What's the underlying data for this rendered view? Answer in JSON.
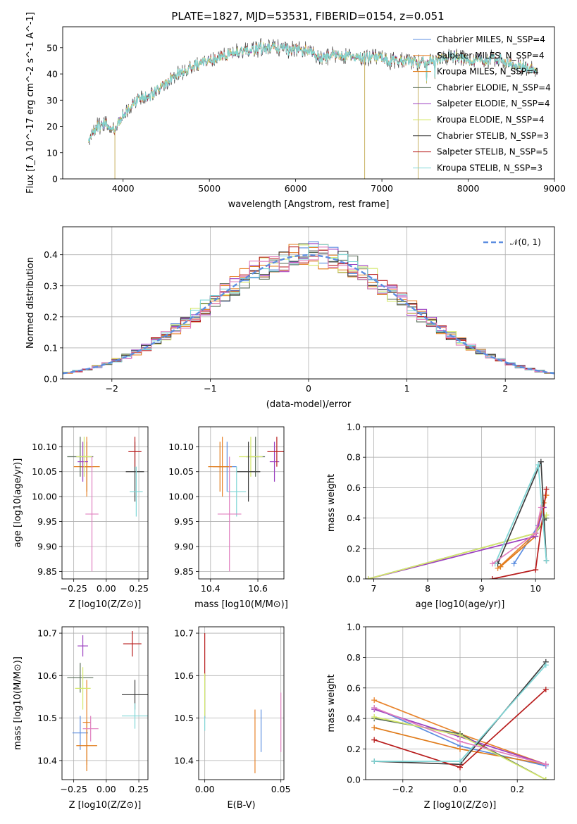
{
  "figure_title": "PLATE=1827, MJD=53531, FIBERID=0154, z=0.051",
  "colors": {
    "chabrier_miles": "#5b8de0",
    "salpeter_miles": "#e8842c",
    "kroupa_miles": "#e07b1a",
    "chabrier_elodie": "#5a6e5a",
    "salpeter_elodie": "#9b3fc0",
    "kroupa_elodie": "#d4e86a",
    "chabrier_stelib": "#3c3c3c",
    "salpeter_stelib": "#b81c1c",
    "kroupa_stelib": "#7fd6d6",
    "normal_curve": "#5b8de0",
    "pink": "#e07fbf"
  },
  "chart_data": [
    {
      "id": "spectrum",
      "type": "line",
      "xlabel": "wavelength [Angstrom, rest frame]",
      "ylabel": "Flux [f_λ 10^-17 erg cm^-2 s^-1 A^-1]",
      "xlim": [
        3300,
        9000
      ],
      "ylim": [
        0,
        58
      ],
      "xticks": [
        "4000",
        "5000",
        "6000",
        "7000",
        "8000",
        "9000"
      ],
      "yticks": [
        "0",
        "10",
        "20",
        "30",
        "40",
        "50"
      ],
      "grid": false,
      "legend_position": "top-right",
      "legend": [
        "Chabrier MILES, N_SSP=4",
        "Salpeter MILES, N_SSP=4",
        "Kroupa MILES, N_SSP=4",
        "Chabrier ELODIE, N_SSP=4",
        "Salpeter ELODIE, N_SSP=4",
        "Kroupa ELODIE, N_SSP=4",
        "Chabrier STELIB, N_SSP=3",
        "Salpeter STELIB, N_SSP=5",
        "Kroupa STELIB, N_SSP=3"
      ],
      "series_envelope": {
        "x": [
          3600,
          3700,
          3800,
          3900,
          4000,
          4100,
          4200,
          4300,
          4400,
          4500,
          4600,
          4700,
          4800,
          4900,
          5000,
          5100,
          5200,
          5300,
          5400,
          5500,
          5600,
          5700,
          5800,
          5900,
          6000,
          6100,
          6200,
          6300,
          6400,
          6500,
          6600,
          6700,
          6800,
          6900,
          7000,
          7100,
          7200,
          7300,
          7400,
          7500,
          7600,
          7700,
          7800,
          7900,
          8000,
          8100,
          8200,
          8300,
          8400,
          8500,
          8600,
          8700,
          8800
        ],
        "y": [
          15,
          20,
          21,
          19,
          24,
          28,
          31,
          31,
          35,
          37,
          40,
          41,
          43,
          44,
          45,
          46,
          47,
          48,
          49,
          49,
          50,
          50,
          50,
          49,
          50,
          49,
          48,
          46,
          47,
          47,
          47,
          46,
          46,
          47,
          46,
          45,
          45,
          45,
          44,
          45,
          45,
          46,
          47,
          46,
          45,
          45,
          45,
          46,
          45,
          44,
          43,
          42,
          41
        ]
      },
      "spikes": [
        {
          "x": 3905,
          "y": 0
        },
        {
          "x": 6800,
          "y": 0
        },
        {
          "x": 7420,
          "y": 0
        }
      ]
    },
    {
      "id": "residual_histogram",
      "type": "histogram",
      "xlabel": "(data-model)/error",
      "ylabel": "Normed distribution",
      "xlim": [
        -2.5,
        2.5
      ],
      "ylim": [
        0,
        0.49
      ],
      "xticks": [
        "−2",
        "−1",
        "0",
        "1",
        "2"
      ],
      "yticks": [
        "0.0",
        "0.1",
        "0.2",
        "0.3",
        "0.4"
      ],
      "grid": true,
      "legend_position": "top-right",
      "legend": [
        "𝒩(0, 1)"
      ],
      "bin_width": 0.1,
      "bin_start": -2.5
    },
    {
      "id": "age_vs_Z",
      "type": "scatter",
      "xlabel": "Z [log10(Z/Z⊙)]",
      "ylabel": "age  [log10(age/yr)]",
      "xlim": [
        -0.34,
        0.32
      ],
      "ylim": [
        9.835,
        10.14
      ],
      "xticks": [
        "−0.25",
        "0.00",
        "0.25"
      ],
      "yticks": [
        "9.85",
        "9.90",
        "9.95",
        "10.00",
        "10.05",
        "10.10"
      ],
      "grid": true,
      "points": [
        {
          "model": "chabrier_miles",
          "x": -0.15,
          "y": 10.06,
          "xerr": 0.04,
          "yerr": 0.05
        },
        {
          "model": "salpeter_miles",
          "x": -0.15,
          "y": 10.06,
          "xerr": 0.05,
          "yerr": 0.06
        },
        {
          "model": "kroupa_miles",
          "x": -0.15,
          "y": 10.06,
          "xerr": 0.1,
          "yerr": 0.05
        },
        {
          "model": "chabrier_elodie",
          "x": -0.2,
          "y": 10.08,
          "xerr": 0.1,
          "yerr": 0.04
        },
        {
          "model": "salpeter_elodie",
          "x": -0.18,
          "y": 10.07,
          "xerr": 0.04,
          "yerr": 0.04
        },
        {
          "model": "kroupa_elodie",
          "x": -0.17,
          "y": 10.08,
          "xerr": 0.06,
          "yerr": 0.04
        },
        {
          "model": "chabrier_stelib",
          "x": 0.22,
          "y": 10.05,
          "xerr": 0.07,
          "yerr": 0.06
        },
        {
          "model": "salpeter_stelib",
          "x": 0.22,
          "y": 10.09,
          "xerr": 0.05,
          "yerr": 0.03
        },
        {
          "model": "kroupa_stelib",
          "x": 0.23,
          "y": 10.01,
          "xerr": 0.05,
          "yerr": 0.05
        },
        {
          "model": "pink",
          "x": -0.11,
          "y": 9.965,
          "xerr": 0.05,
          "yerr": 0.115
        }
      ]
    },
    {
      "id": "age_vs_mass",
      "type": "scatter",
      "xlabel": "mass [log10(M/M⊙)]",
      "ylabel": "",
      "xlim": [
        10.35,
        10.71
      ],
      "ylim": [
        9.835,
        10.14
      ],
      "xticks": [
        "10.4",
        "10.6"
      ],
      "yticks": [
        "9.85",
        "9.90",
        "9.95",
        "10.00",
        "10.05",
        "10.10"
      ],
      "grid": true,
      "points": [
        {
          "model": "chabrier_miles",
          "x": 10.47,
          "y": 10.06,
          "xerr": 0.04,
          "yerr": 0.05
        },
        {
          "model": "salpeter_miles",
          "x": 10.45,
          "y": 10.06,
          "xerr": 0.04,
          "yerr": 0.06
        },
        {
          "model": "kroupa_miles",
          "x": 10.44,
          "y": 10.06,
          "xerr": 0.05,
          "yerr": 0.05
        },
        {
          "model": "chabrier_elodie",
          "x": 10.59,
          "y": 10.08,
          "xerr": 0.04,
          "yerr": 0.04
        },
        {
          "model": "salpeter_elodie",
          "x": 10.67,
          "y": 10.07,
          "xerr": 0.02,
          "yerr": 0.04
        },
        {
          "model": "kroupa_elodie",
          "x": 10.57,
          "y": 10.08,
          "xerr": 0.05,
          "yerr": 0.04
        },
        {
          "model": "chabrier_stelib",
          "x": 10.56,
          "y": 10.05,
          "xerr": 0.05,
          "yerr": 0.06
        },
        {
          "model": "salpeter_stelib",
          "x": 10.68,
          "y": 10.09,
          "xerr": 0.04,
          "yerr": 0.03
        },
        {
          "model": "kroupa_stelib",
          "x": 10.51,
          "y": 10.01,
          "xerr": 0.04,
          "yerr": 0.05
        },
        {
          "model": "pink",
          "x": 10.48,
          "y": 9.965,
          "xerr": 0.05,
          "yerr": 0.115
        }
      ]
    },
    {
      "id": "mass_weight_vs_age",
      "type": "line",
      "xlabel": "age  [log10(age/yr)]",
      "ylabel": "mass weight",
      "xlim": [
        6.85,
        10.35
      ],
      "ylim": [
        0,
        1
      ],
      "xticks": [
        "7",
        "8",
        "9",
        "10"
      ],
      "yticks": [
        "0.0",
        "0.2",
        "0.4",
        "0.6",
        "0.8",
        "1.0"
      ],
      "grid": true,
      "series": [
        {
          "model": "chabrier_miles",
          "x": [
            9.6,
            10.05,
            10.15
          ],
          "y": [
            0.1,
            0.35,
            0.47
          ]
        },
        {
          "model": "salpeter_miles",
          "x": [
            9.3,
            10.0,
            10.2
          ],
          "y": [
            0.07,
            0.3,
            0.55
          ]
        },
        {
          "model": "kroupa_miles",
          "x": [
            9.35,
            10.0,
            10.15
          ],
          "y": [
            0.08,
            0.28,
            0.5
          ]
        },
        {
          "model": "chabrier_elodie",
          "x": [
            6.9,
            10.0,
            10.2
          ],
          "y": [
            0.0,
            0.3,
            0.4
          ]
        },
        {
          "model": "salpeter_elodie",
          "x": [
            6.9,
            10.0,
            10.15
          ],
          "y": [
            0.0,
            0.28,
            0.47
          ]
        },
        {
          "model": "kroupa_elodie",
          "x": [
            6.9,
            10.0,
            10.2
          ],
          "y": [
            0.0,
            0.3,
            0.42
          ]
        },
        {
          "model": "chabrier_stelib",
          "x": [
            9.3,
            10.1,
            10.2
          ],
          "y": [
            0.1,
            0.77,
            0.12
          ]
        },
        {
          "model": "salpeter_stelib",
          "x": [
            9.2,
            10.0,
            10.2
          ],
          "y": [
            0.0,
            0.06,
            0.59
          ]
        },
        {
          "model": "kroupa_stelib",
          "x": [
            9.25,
            10.05,
            10.2
          ],
          "y": [
            0.1,
            0.75,
            0.12
          ]
        },
        {
          "model": "pink",
          "x": [
            9.2,
            10.0,
            10.1
          ],
          "y": [
            0.1,
            0.3,
            0.47
          ]
        }
      ]
    },
    {
      "id": "mass_vs_Z",
      "type": "scatter",
      "xlabel": "Z [log10(Z/Z⊙)]",
      "ylabel": "mass [log10(M/M⊙)]",
      "xlim": [
        -0.34,
        0.32
      ],
      "ylim": [
        10.355,
        10.715
      ],
      "xticks": [
        "−0.25",
        "0.00",
        "0.25"
      ],
      "yticks": [
        "10.4",
        "10.5",
        "10.6",
        "10.7"
      ],
      "grid": true,
      "points": [
        {
          "model": "chabrier_miles",
          "x": -0.2,
          "y": 10.465,
          "xerr": 0.06,
          "yerr": 0.04
        },
        {
          "model": "salpeter_miles",
          "x": -0.15,
          "y": 10.49,
          "xerr": 0.03,
          "yerr": 0.1
        },
        {
          "model": "kroupa_miles",
          "x": -0.15,
          "y": 10.435,
          "xerr": 0.08,
          "yerr": 0.06
        },
        {
          "model": "chabrier_elodie",
          "x": -0.2,
          "y": 10.595,
          "xerr": 0.1,
          "yerr": 0.035
        },
        {
          "model": "salpeter_elodie",
          "x": -0.18,
          "y": 10.67,
          "xerr": 0.04,
          "yerr": 0.025
        },
        {
          "model": "kroupa_elodie",
          "x": -0.18,
          "y": 10.57,
          "xerr": 0.06,
          "yerr": 0.05
        },
        {
          "model": "chabrier_stelib",
          "x": 0.22,
          "y": 10.555,
          "xerr": 0.1,
          "yerr": 0.035
        },
        {
          "model": "salpeter_stelib",
          "x": 0.2,
          "y": 10.675,
          "xerr": 0.07,
          "yerr": 0.03
        },
        {
          "model": "kroupa_stelib",
          "x": 0.22,
          "y": 10.505,
          "xerr": 0.1,
          "yerr": 0.03
        },
        {
          "model": "pink",
          "x": -0.12,
          "y": 10.475,
          "xerr": 0.06,
          "yerr": 0.03
        }
      ]
    },
    {
      "id": "mass_vs_ebv",
      "type": "scatter",
      "xlabel": "E(B-V)",
      "ylabel": "",
      "xlim": [
        -0.004,
        0.052
      ],
      "ylim": [
        10.355,
        10.715
      ],
      "xticks": [
        "0.00",
        "0.05"
      ],
      "yticks": [
        "10.4",
        "10.5",
        "10.6",
        "10.7"
      ],
      "grid": true,
      "points": [
        {
          "model": "chabrier_miles",
          "x": 0.037,
          "y": 10.47,
          "yerr": 0.05
        },
        {
          "model": "salpeter_miles",
          "x": 0.033,
          "y": 10.445,
          "yerr": 0.075
        },
        {
          "model": "salpeter_stelib",
          "x": 0.0,
          "y": 10.6,
          "yerr": 0.1
        },
        {
          "model": "kroupa_stelib",
          "x": 0.0,
          "y": 10.53,
          "yerr": 0.06
        },
        {
          "model": "kroupa_elodie",
          "x": 0.0,
          "y": 10.555,
          "yerr": 0.05
        },
        {
          "model": "pink",
          "x": 0.05,
          "y": 10.49,
          "yerr": 0.07
        }
      ]
    },
    {
      "id": "mass_weight_vs_Z",
      "type": "line",
      "xlabel": "Z [log10(Z/Z⊙)]",
      "ylabel": "mass weight",
      "xlim": [
        -0.33,
        0.33
      ],
      "ylim": [
        0,
        1
      ],
      "xticks": [
        "−0.2",
        "0.0",
        "0.2"
      ],
      "yticks": [
        "0.0",
        "0.2",
        "0.4",
        "0.6",
        "0.8",
        "1.0"
      ],
      "grid": true,
      "series": [
        {
          "model": "chabrier_miles",
          "x": [
            -0.3,
            0.0,
            0.3
          ],
          "y": [
            0.47,
            0.22,
            0.09
          ]
        },
        {
          "model": "salpeter_miles",
          "x": [
            -0.3,
            0.0,
            0.3
          ],
          "y": [
            0.52,
            0.3,
            0.1
          ]
        },
        {
          "model": "kroupa_miles",
          "x": [
            -0.3,
            0.0,
            0.3
          ],
          "y": [
            0.34,
            0.2,
            0.1
          ]
        },
        {
          "model": "chabrier_elodie",
          "x": [
            -0.3,
            0.0,
            0.3
          ],
          "y": [
            0.4,
            0.3,
            0.0
          ]
        },
        {
          "model": "salpeter_elodie",
          "x": [
            -0.3,
            0.0,
            0.3
          ],
          "y": [
            0.46,
            0.28,
            0.1
          ]
        },
        {
          "model": "kroupa_elodie",
          "x": [
            -0.3,
            0.0,
            0.3
          ],
          "y": [
            0.41,
            0.29,
            0.0
          ]
        },
        {
          "model": "chabrier_stelib",
          "x": [
            -0.3,
            0.0,
            0.3
          ],
          "y": [
            0.12,
            0.1,
            0.77
          ]
        },
        {
          "model": "salpeter_stelib",
          "x": [
            -0.3,
            0.0,
            0.3
          ],
          "y": [
            0.26,
            0.08,
            0.59
          ]
        },
        {
          "model": "kroupa_stelib",
          "x": [
            -0.3,
            0.0,
            0.3
          ],
          "y": [
            0.12,
            0.12,
            0.75
          ]
        },
        {
          "model": "pink",
          "x": [
            -0.3,
            0.0,
            0.3
          ],
          "y": [
            0.47,
            0.25,
            0.1
          ]
        }
      ]
    }
  ]
}
